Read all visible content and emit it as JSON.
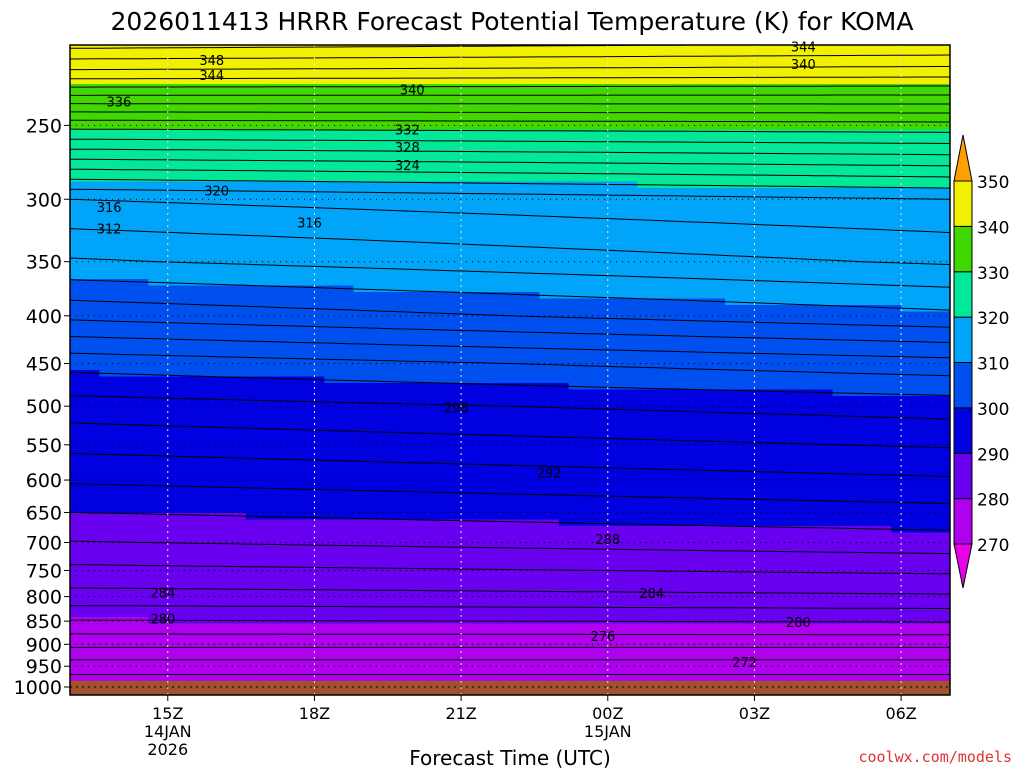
{
  "chart_data": {
    "type": "contour",
    "title": "2026011413 HRRR Forecast Potential Temperature (K) for KOMA",
    "xlabel": "Forecast Time (UTC)",
    "ylabel": "",
    "x_ticks": [
      {
        "hour": 15,
        "label": "15Z",
        "sub1": "14JAN",
        "sub2": "2026"
      },
      {
        "hour": 18,
        "label": "18Z",
        "sub1": "",
        "sub2": ""
      },
      {
        "hour": 21,
        "label": "21Z",
        "sub1": "",
        "sub2": ""
      },
      {
        "hour": 24,
        "label": "00Z",
        "sub1": "15JAN",
        "sub2": ""
      },
      {
        "hour": 27,
        "label": "03Z",
        "sub1": "",
        "sub2": ""
      },
      {
        "hour": 30,
        "label": "06Z",
        "sub1": "",
        "sub2": ""
      }
    ],
    "xlim": [
      13,
      31
    ],
    "y_ticks": [
      250,
      300,
      350,
      400,
      450,
      500,
      550,
      600,
      650,
      700,
      750,
      800,
      850,
      900,
      950,
      1000
    ],
    "ylim": [
      1020,
      205
    ],
    "y_scale": "log",
    "y_units": "hPa",
    "ground_level_hpa": 985,
    "colorbar": {
      "levels": [
        270,
        280,
        290,
        300,
        310,
        320,
        330,
        340,
        350
      ],
      "colors": [
        "#e800e8",
        "#b000f0",
        "#6a00f0",
        "#0000e0",
        "#0050f0",
        "#00a4f8",
        "#00e898",
        "#40d800",
        "#f0f000",
        "#ffa000"
      ]
    },
    "contour_interval": 2,
    "contour_labels": [
      {
        "value": 348,
        "x": 15.9,
        "p": 213
      },
      {
        "value": 344,
        "x": 15.9,
        "p": 221
      },
      {
        "value": 344,
        "x": 28.0,
        "p": 206
      },
      {
        "value": 340,
        "x": 28.0,
        "p": 215
      },
      {
        "value": 340,
        "x": 20.0,
        "p": 229
      },
      {
        "value": 336,
        "x": 14.0,
        "p": 236
      },
      {
        "value": 332,
        "x": 19.9,
        "p": 253
      },
      {
        "value": 328,
        "x": 19.9,
        "p": 264
      },
      {
        "value": 324,
        "x": 19.9,
        "p": 276
      },
      {
        "value": 320,
        "x": 16.0,
        "p": 294
      },
      {
        "value": 316,
        "x": 13.8,
        "p": 306
      },
      {
        "value": 316,
        "x": 17.9,
        "p": 318
      },
      {
        "value": 312,
        "x": 13.8,
        "p": 323
      },
      {
        "value": 298,
        "x": 20.9,
        "p": 502
      },
      {
        "value": 292,
        "x": 22.8,
        "p": 590
      },
      {
        "value": 288,
        "x": 24.0,
        "p": 695
      },
      {
        "value": 284,
        "x": 14.9,
        "p": 793
      },
      {
        "value": 284,
        "x": 24.9,
        "p": 794
      },
      {
        "value": 280,
        "x": 14.9,
        "p": 845
      },
      {
        "value": 280,
        "x": 27.9,
        "p": 853
      },
      {
        "value": 276,
        "x": 23.9,
        "p": 883
      },
      {
        "value": 272,
        "x": 26.8,
        "p": 941
      }
    ]
  },
  "watermark": "coolwx.com/models"
}
